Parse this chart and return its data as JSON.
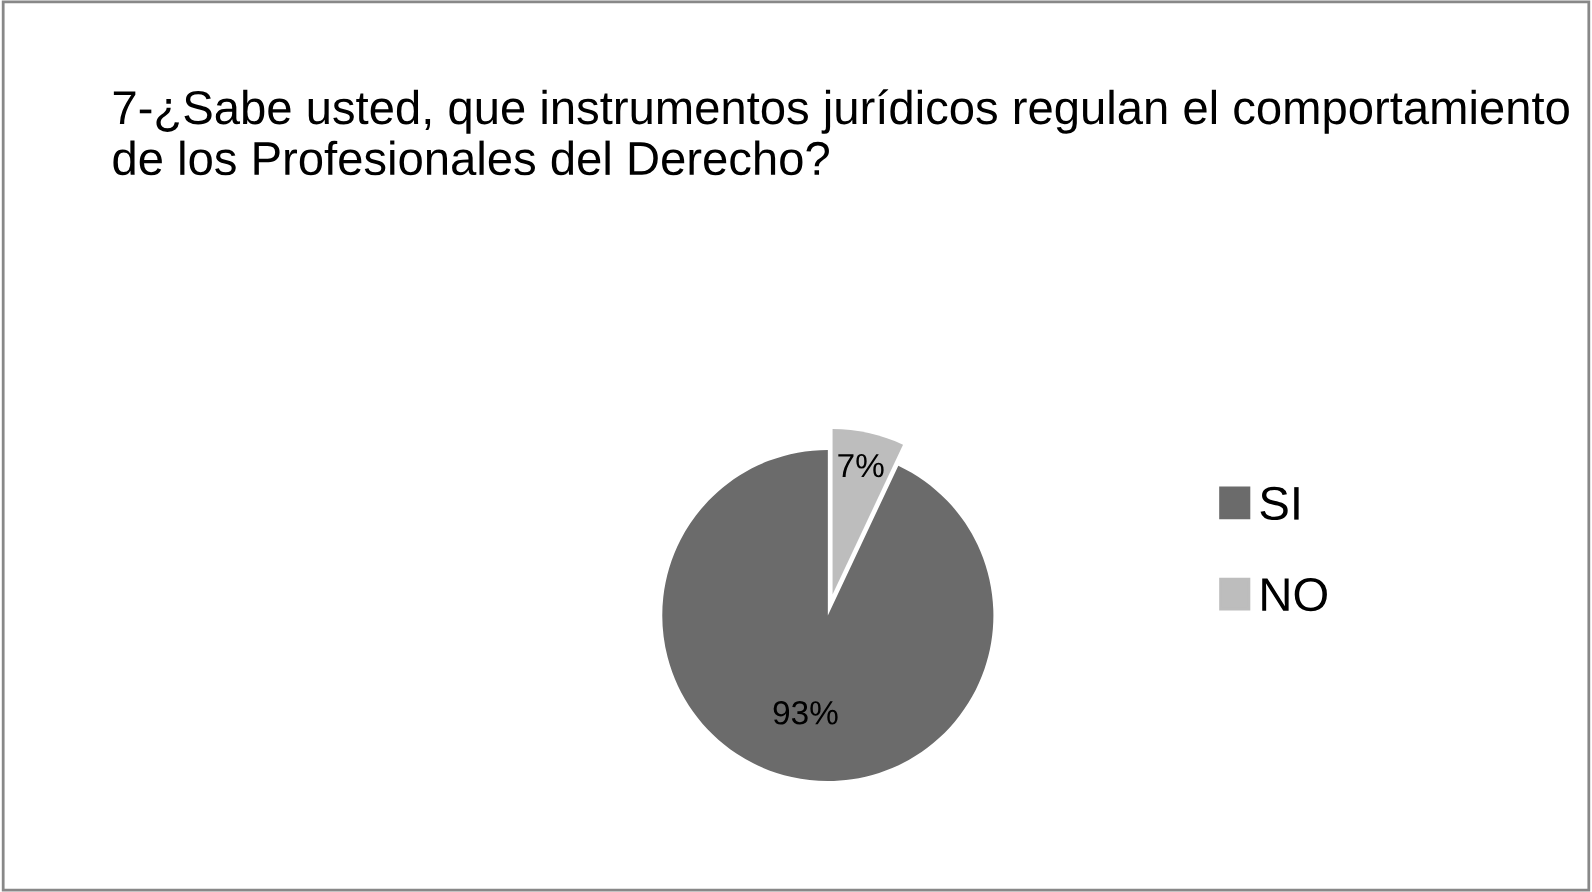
{
  "chart_data": {
    "type": "pie",
    "title": "7-¿Sabe usted, que instrumentos jurídicos regulan el comportamiento de los Profesionales del Derecho?",
    "categories": [
      "SI",
      "NO"
    ],
    "values": [
      93,
      7
    ],
    "colors": [
      "#6b6b6b",
      "#bdbdbd"
    ],
    "value_labels": [
      "93%",
      "7%"
    ],
    "legend": "right"
  }
}
